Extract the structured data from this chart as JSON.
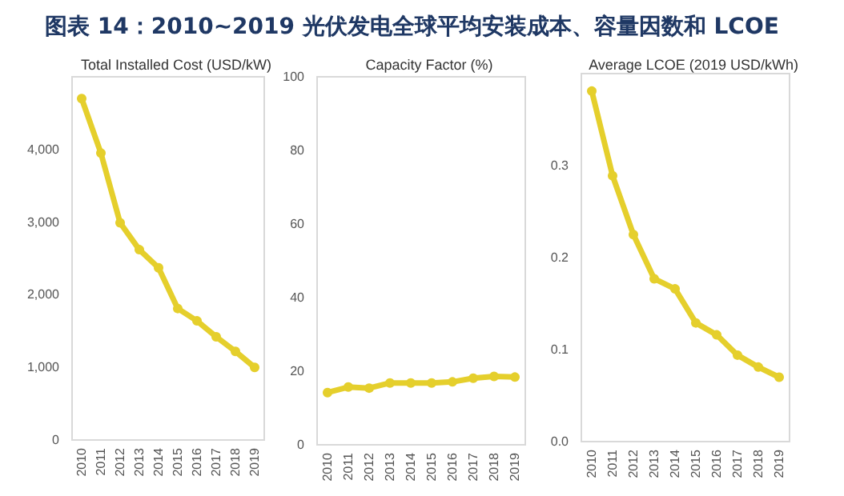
{
  "chart_data": [
    {
      "type": "line",
      "title": "Total Installed Cost (USD/kW)",
      "annotations": [
        "图表 14：2010~2019 光伏发电全球平均安装成本、容量因数和 LCOE"
      ],
      "categories": [
        "2010",
        "2011",
        "2012",
        "2013",
        "2014",
        "2015",
        "2016",
        "2017",
        "2018",
        "2019"
      ],
      "series": [
        {
          "color": "#e5cf2c",
          "values": [
            4700,
            3950,
            2990,
            2620,
            2370,
            1810,
            1640,
            1420,
            1220,
            1000
          ]
        }
      ],
      "ylim": [
        0,
        5000
      ],
      "yticks": [
        0,
        {
          "value": 1000,
          "label": "1,000"
        },
        {
          "value": 2000,
          "label": "2,000"
        },
        {
          "value": 3000,
          "label": "3,000"
        },
        {
          "value": 4000,
          "label": "4,000"
        }
      ],
      "grid": false,
      "marker": "circle",
      "line_style": "solid"
    },
    {
      "type": "line",
      "title": "Capacity Factor (%)",
      "categories": [
        "2010",
        "2011",
        "2012",
        "2013",
        "2014",
        "2015",
        "2016",
        "2017",
        "2018",
        "2019"
      ],
      "series": [
        {
          "color": "#e5cf2c",
          "values": [
            14.2,
            15.7,
            15.4,
            16.8,
            16.8,
            16.8,
            17.1,
            18.1,
            18.6,
            18.4
          ]
        }
      ],
      "ylim": [
        0,
        100
      ],
      "yticks": [
        0,
        20,
        40,
        60,
        80,
        100
      ],
      "grid": false,
      "marker": "circle",
      "line_style": "solid"
    },
    {
      "type": "line",
      "title": "Average LCOE (2019 USD/kWh)",
      "categories": [
        "2010",
        "2011",
        "2012",
        "2013",
        "2014",
        "2015",
        "2016",
        "2017",
        "2018",
        "2019"
      ],
      "series": [
        {
          "color": "#e5cf2c",
          "values": [
            0.381,
            0.289,
            0.225,
            0.177,
            0.166,
            0.129,
            0.116,
            0.094,
            0.081,
            0.07
          ]
        }
      ],
      "ylim": [
        0,
        0.4
      ],
      "yticks": [
        {
          "value": 0,
          "label": "0.0"
        },
        0.1,
        0.2,
        0.3
      ],
      "grid": false,
      "marker": "circle",
      "line_style": "solid"
    }
  ]
}
